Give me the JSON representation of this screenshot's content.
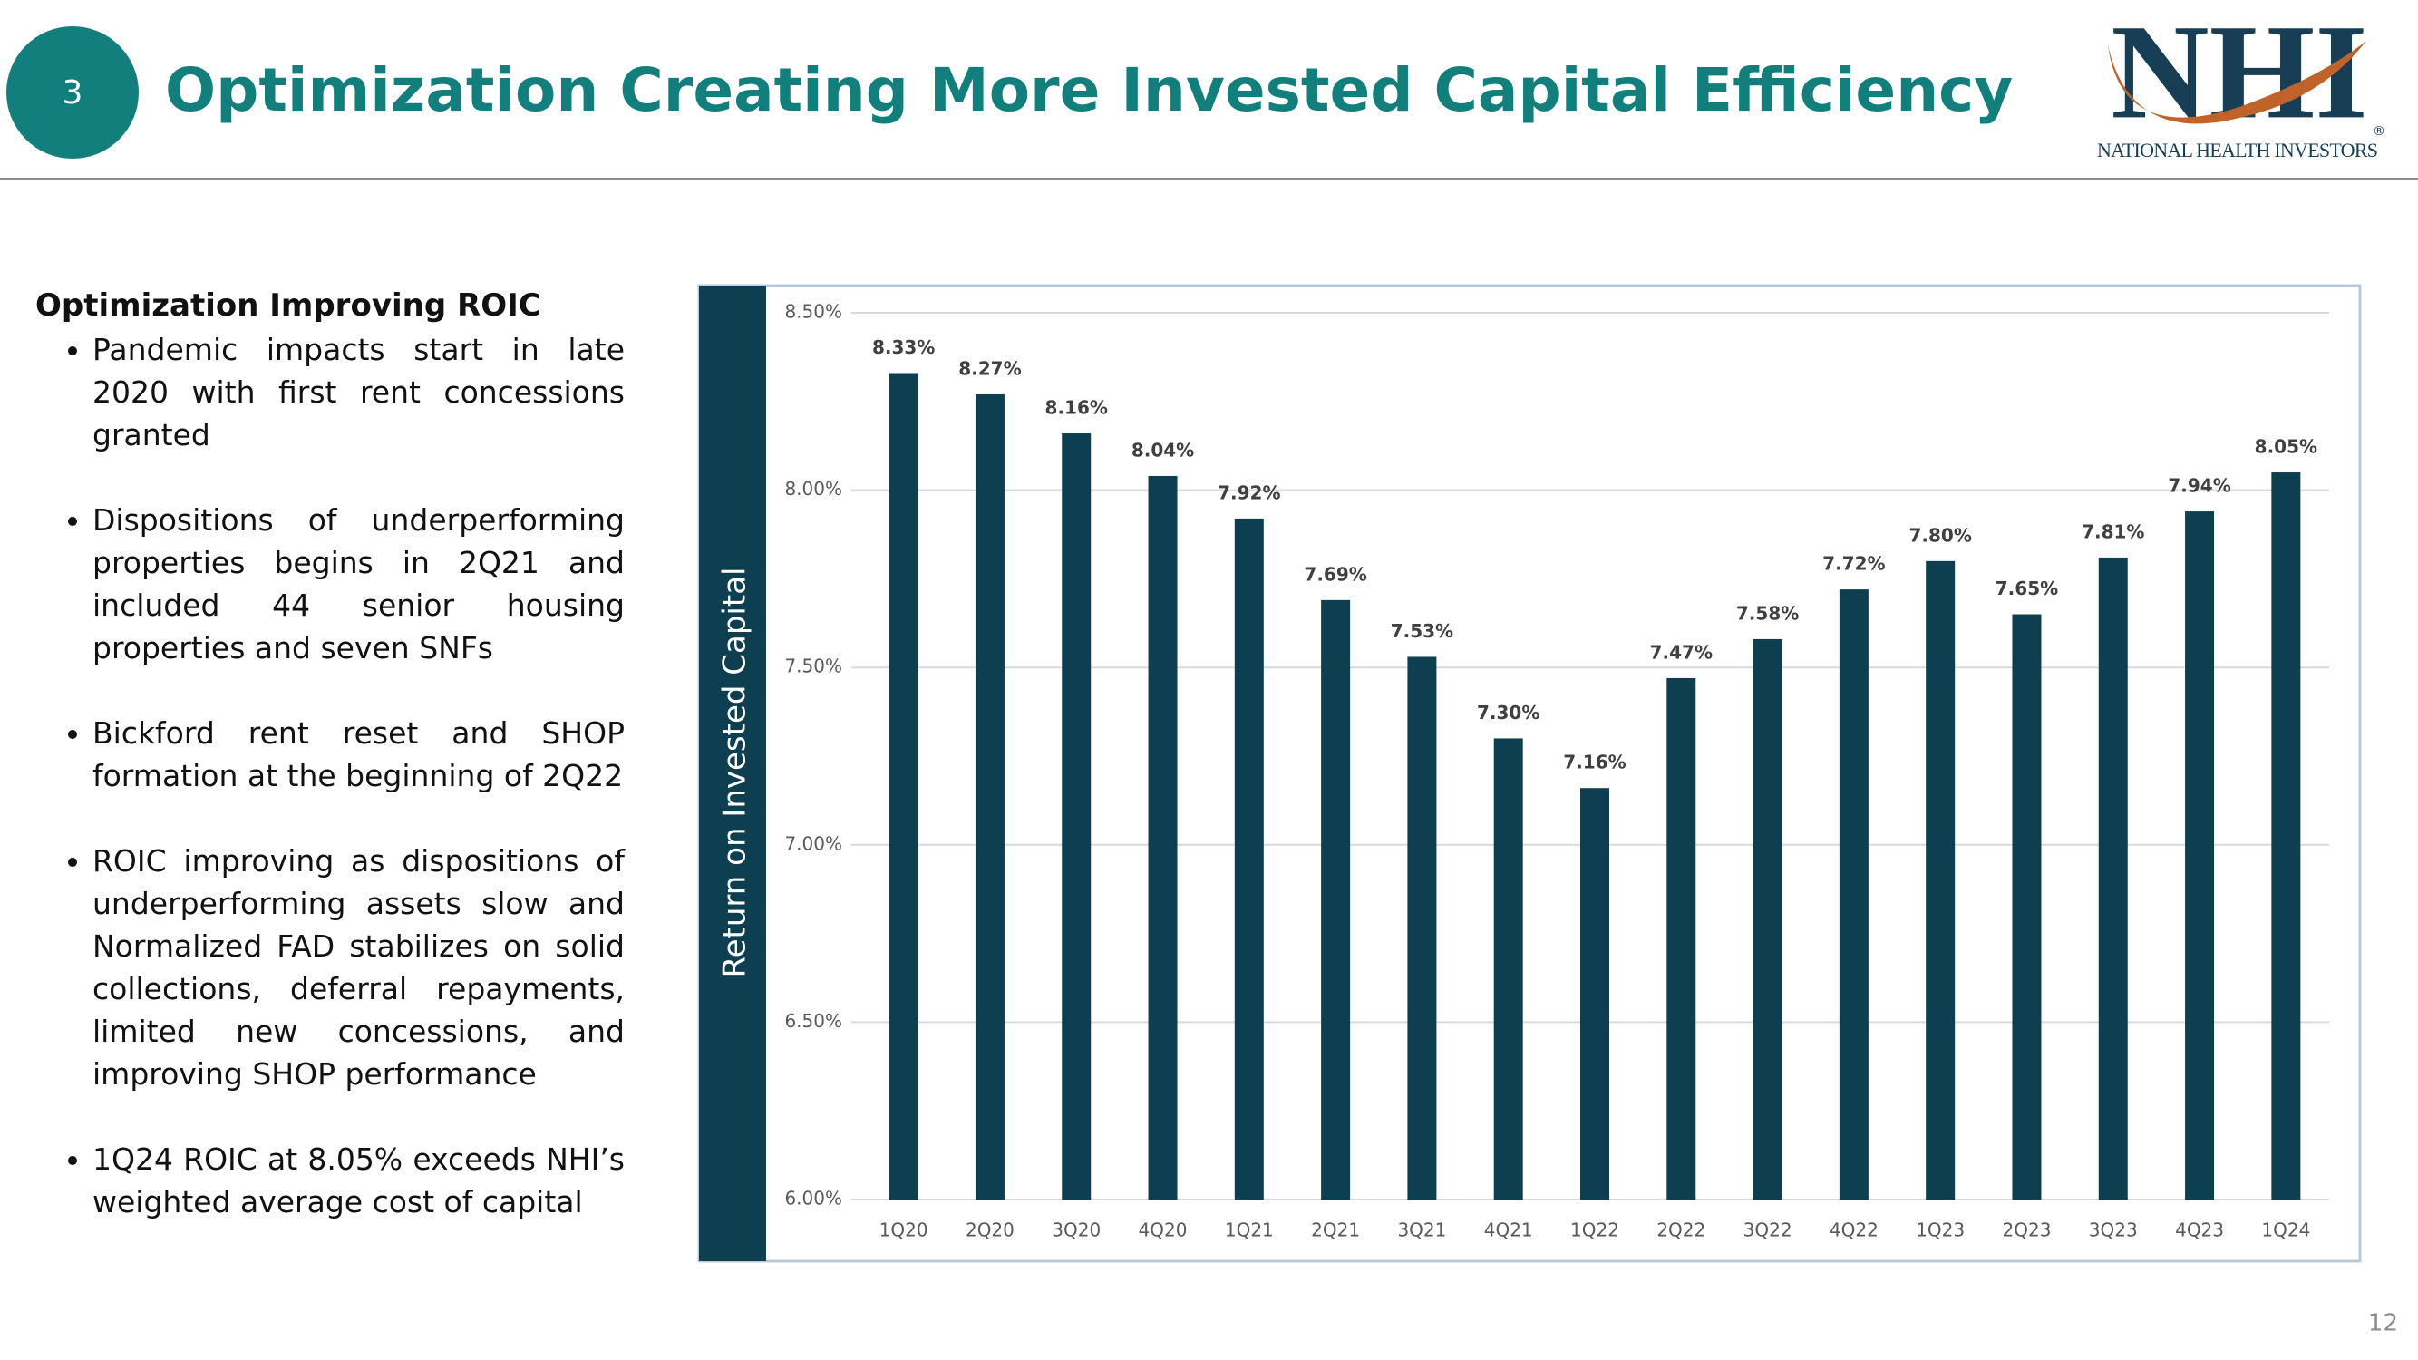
{
  "header": {
    "slide_number": "3",
    "title": "Optimization Creating More Invested Capital Efficiency",
    "logo": "NHI",
    "logo_mark": "®",
    "logo_subtitle": "NATIONAL HEALTH INVESTORS"
  },
  "sidebar": {
    "heading": "Optimization Improving ROIC",
    "bullets": [
      "Pandemic impacts start in late 2020 with first rent concessions granted",
      "Dispositions of underperforming properties begins in 2Q21 and included 44 senior housing properties and seven SNFs",
      "Bickford rent reset and SHOP formation at the beginning of 2Q22",
      "ROIC improving as dispositions of underperforming assets slow and Normalized FAD stabilizes on solid collections, deferral repayments, limited new concessions, and improving SHOP performance",
      "1Q24 ROIC at 8.05% exceeds NHI’s weighted average cost of capital"
    ]
  },
  "page_number": "12",
  "chart_data": {
    "type": "bar",
    "y_label": "Return on Invested Capital",
    "categories": [
      "1Q20",
      "2Q20",
      "3Q20",
      "4Q20",
      "1Q21",
      "2Q21",
      "3Q21",
      "4Q21",
      "1Q22",
      "2Q22",
      "3Q22",
      "4Q22",
      "1Q23",
      "2Q23",
      "3Q23",
      "4Q23",
      "1Q24"
    ],
    "values": [
      8.33,
      8.27,
      8.16,
      8.04,
      7.92,
      7.69,
      7.53,
      7.3,
      7.16,
      7.47,
      7.58,
      7.72,
      7.8,
      7.65,
      7.81,
      7.94,
      8.05
    ],
    "value_labels": [
      "8.33%",
      "8.27%",
      "8.16%",
      "8.04%",
      "7.92%",
      "7.69%",
      "7.53%",
      "7.30%",
      "7.16%",
      "7.47%",
      "7.58%",
      "7.72%",
      "7.80%",
      "7.65%",
      "7.81%",
      "7.94%",
      "8.05%"
    ],
    "color": "#0d3f50",
    "ylim": [
      6.0,
      8.5
    ],
    "yticks": [
      {
        "value": 6.0,
        "label": "6.00%"
      },
      {
        "value": 6.5,
        "label": "6.50%"
      },
      {
        "value": 7.0,
        "label": "7.00%"
      },
      {
        "value": 7.5,
        "label": "7.50%"
      },
      {
        "value": 8.0,
        "label": "8.00%"
      },
      {
        "value": 8.5,
        "label": "8.50%"
      }
    ],
    "grid": true
  }
}
